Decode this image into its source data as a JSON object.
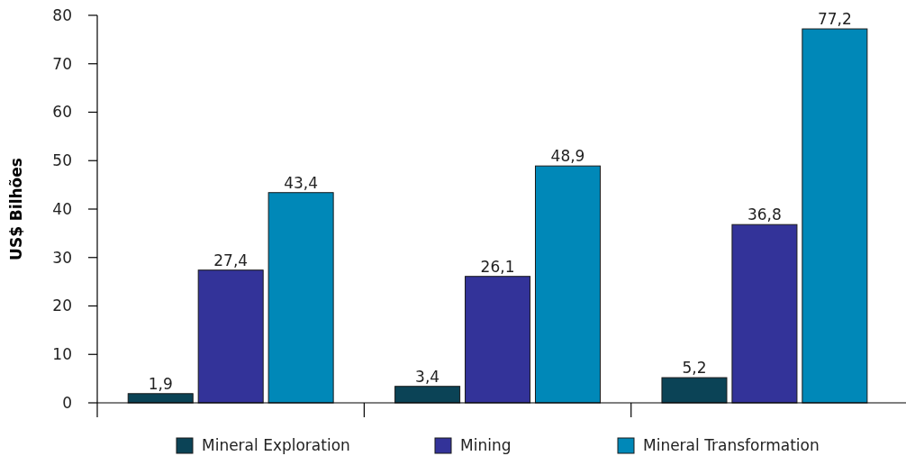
{
  "chart_data": {
    "type": "bar",
    "ylabel": "US$ Bilhões",
    "categories": [
      null,
      null,
      null
    ],
    "series": [
      {
        "name": "Mineral Exploration",
        "color": "#0b4356",
        "values": [
          1.9,
          3.4,
          5.2
        ],
        "value_labels": [
          "1,9",
          "3,4",
          "5,2"
        ]
      },
      {
        "name": "Mining",
        "color": "#333399",
        "values": [
          27.4,
          26.1,
          36.8
        ],
        "value_labels": [
          "27,4",
          "26,1",
          "36,8"
        ]
      },
      {
        "name": "Mineral Transformation",
        "color": "#0088b8",
        "values": [
          43.4,
          48.9,
          77.2
        ],
        "value_labels": [
          "43,4",
          "48,9",
          "77,2"
        ]
      }
    ],
    "ylim": [
      0,
      80
    ],
    "yticks": [
      0,
      10,
      20,
      30,
      40,
      50,
      60,
      70,
      80
    ],
    "grid": false,
    "legend": "bottom"
  }
}
